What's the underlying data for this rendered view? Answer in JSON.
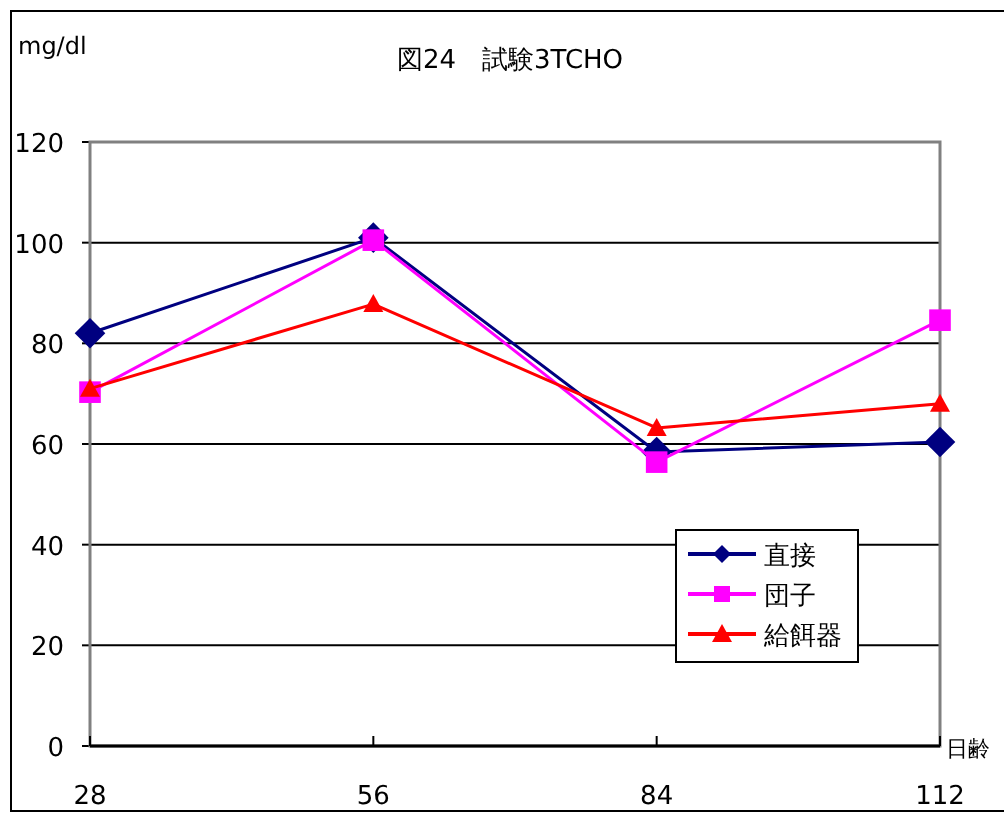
{
  "chart_data": {
    "type": "line",
    "title": "図24　試験3TCHO",
    "xlabel": "日齢",
    "ylabel": "mg/dl",
    "categories": [
      "28",
      "56",
      "84",
      "112"
    ],
    "series": [
      {
        "name": "直接",
        "color": "#000080",
        "marker": "diamond",
        "values": [
          82,
          101,
          58.4,
          60.4
        ]
      },
      {
        "name": "団子",
        "color": "#ff00ff",
        "marker": "square",
        "values": [
          70.3,
          100.5,
          56.4,
          84.6
        ]
      },
      {
        "name": "給餌器",
        "color": "#ff0000",
        "marker": "triangle",
        "values": [
          71,
          87.8,
          63.2,
          68
        ]
      }
    ],
    "ylim": [
      0,
      120
    ],
    "yticks": [
      0,
      20,
      40,
      60,
      80,
      100,
      120
    ],
    "grid": "y",
    "legend": "bottom right"
  }
}
